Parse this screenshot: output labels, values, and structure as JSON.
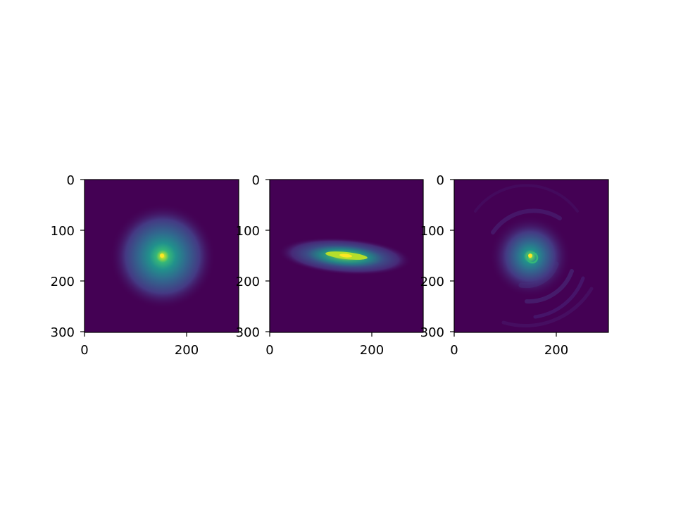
{
  "chart_data": [
    {
      "type": "heatmap",
      "title": "",
      "xlabel": "",
      "ylabel": "",
      "xlim": [
        0,
        300
      ],
      "ylim": [
        300,
        0
      ],
      "x_ticks": [
        "0",
        "200"
      ],
      "y_ticks": [
        "0",
        "100",
        "200",
        "300"
      ],
      "colormap": "viridis",
      "grid": false,
      "peak": {
        "x": 152,
        "y": 150
      },
      "pattern": "round Gaussian spot"
    },
    {
      "type": "heatmap",
      "title": "",
      "xlabel": "",
      "ylabel": "",
      "xlim": [
        0,
        300
      ],
      "ylim": [
        300,
        0
      ],
      "x_ticks": [
        "0",
        "200"
      ],
      "y_ticks": [
        "0",
        "100",
        "200",
        "300"
      ],
      "colormap": "viridis",
      "grid": false,
      "peak": {
        "x": 152,
        "y": 150
      },
      "pattern": "horizontally elongated elliptical spot"
    },
    {
      "type": "heatmap",
      "title": "",
      "xlabel": "",
      "ylabel": "",
      "xlim": [
        0,
        300
      ],
      "ylim": [
        300,
        0
      ],
      "x_ticks": [
        "0",
        "200"
      ],
      "y_ticks": [
        "0",
        "100",
        "200",
        "300"
      ],
      "colormap": "viridis",
      "grid": false,
      "peak": {
        "x": 152,
        "y": 150
      },
      "pattern": "spot with concentric ripple rings"
    }
  ],
  "colors": {
    "viridis_low": "#440154",
    "viridis_mid": "#21918c",
    "viridis_high": "#fde725",
    "axis": "#000000",
    "background": "#ffffff"
  }
}
